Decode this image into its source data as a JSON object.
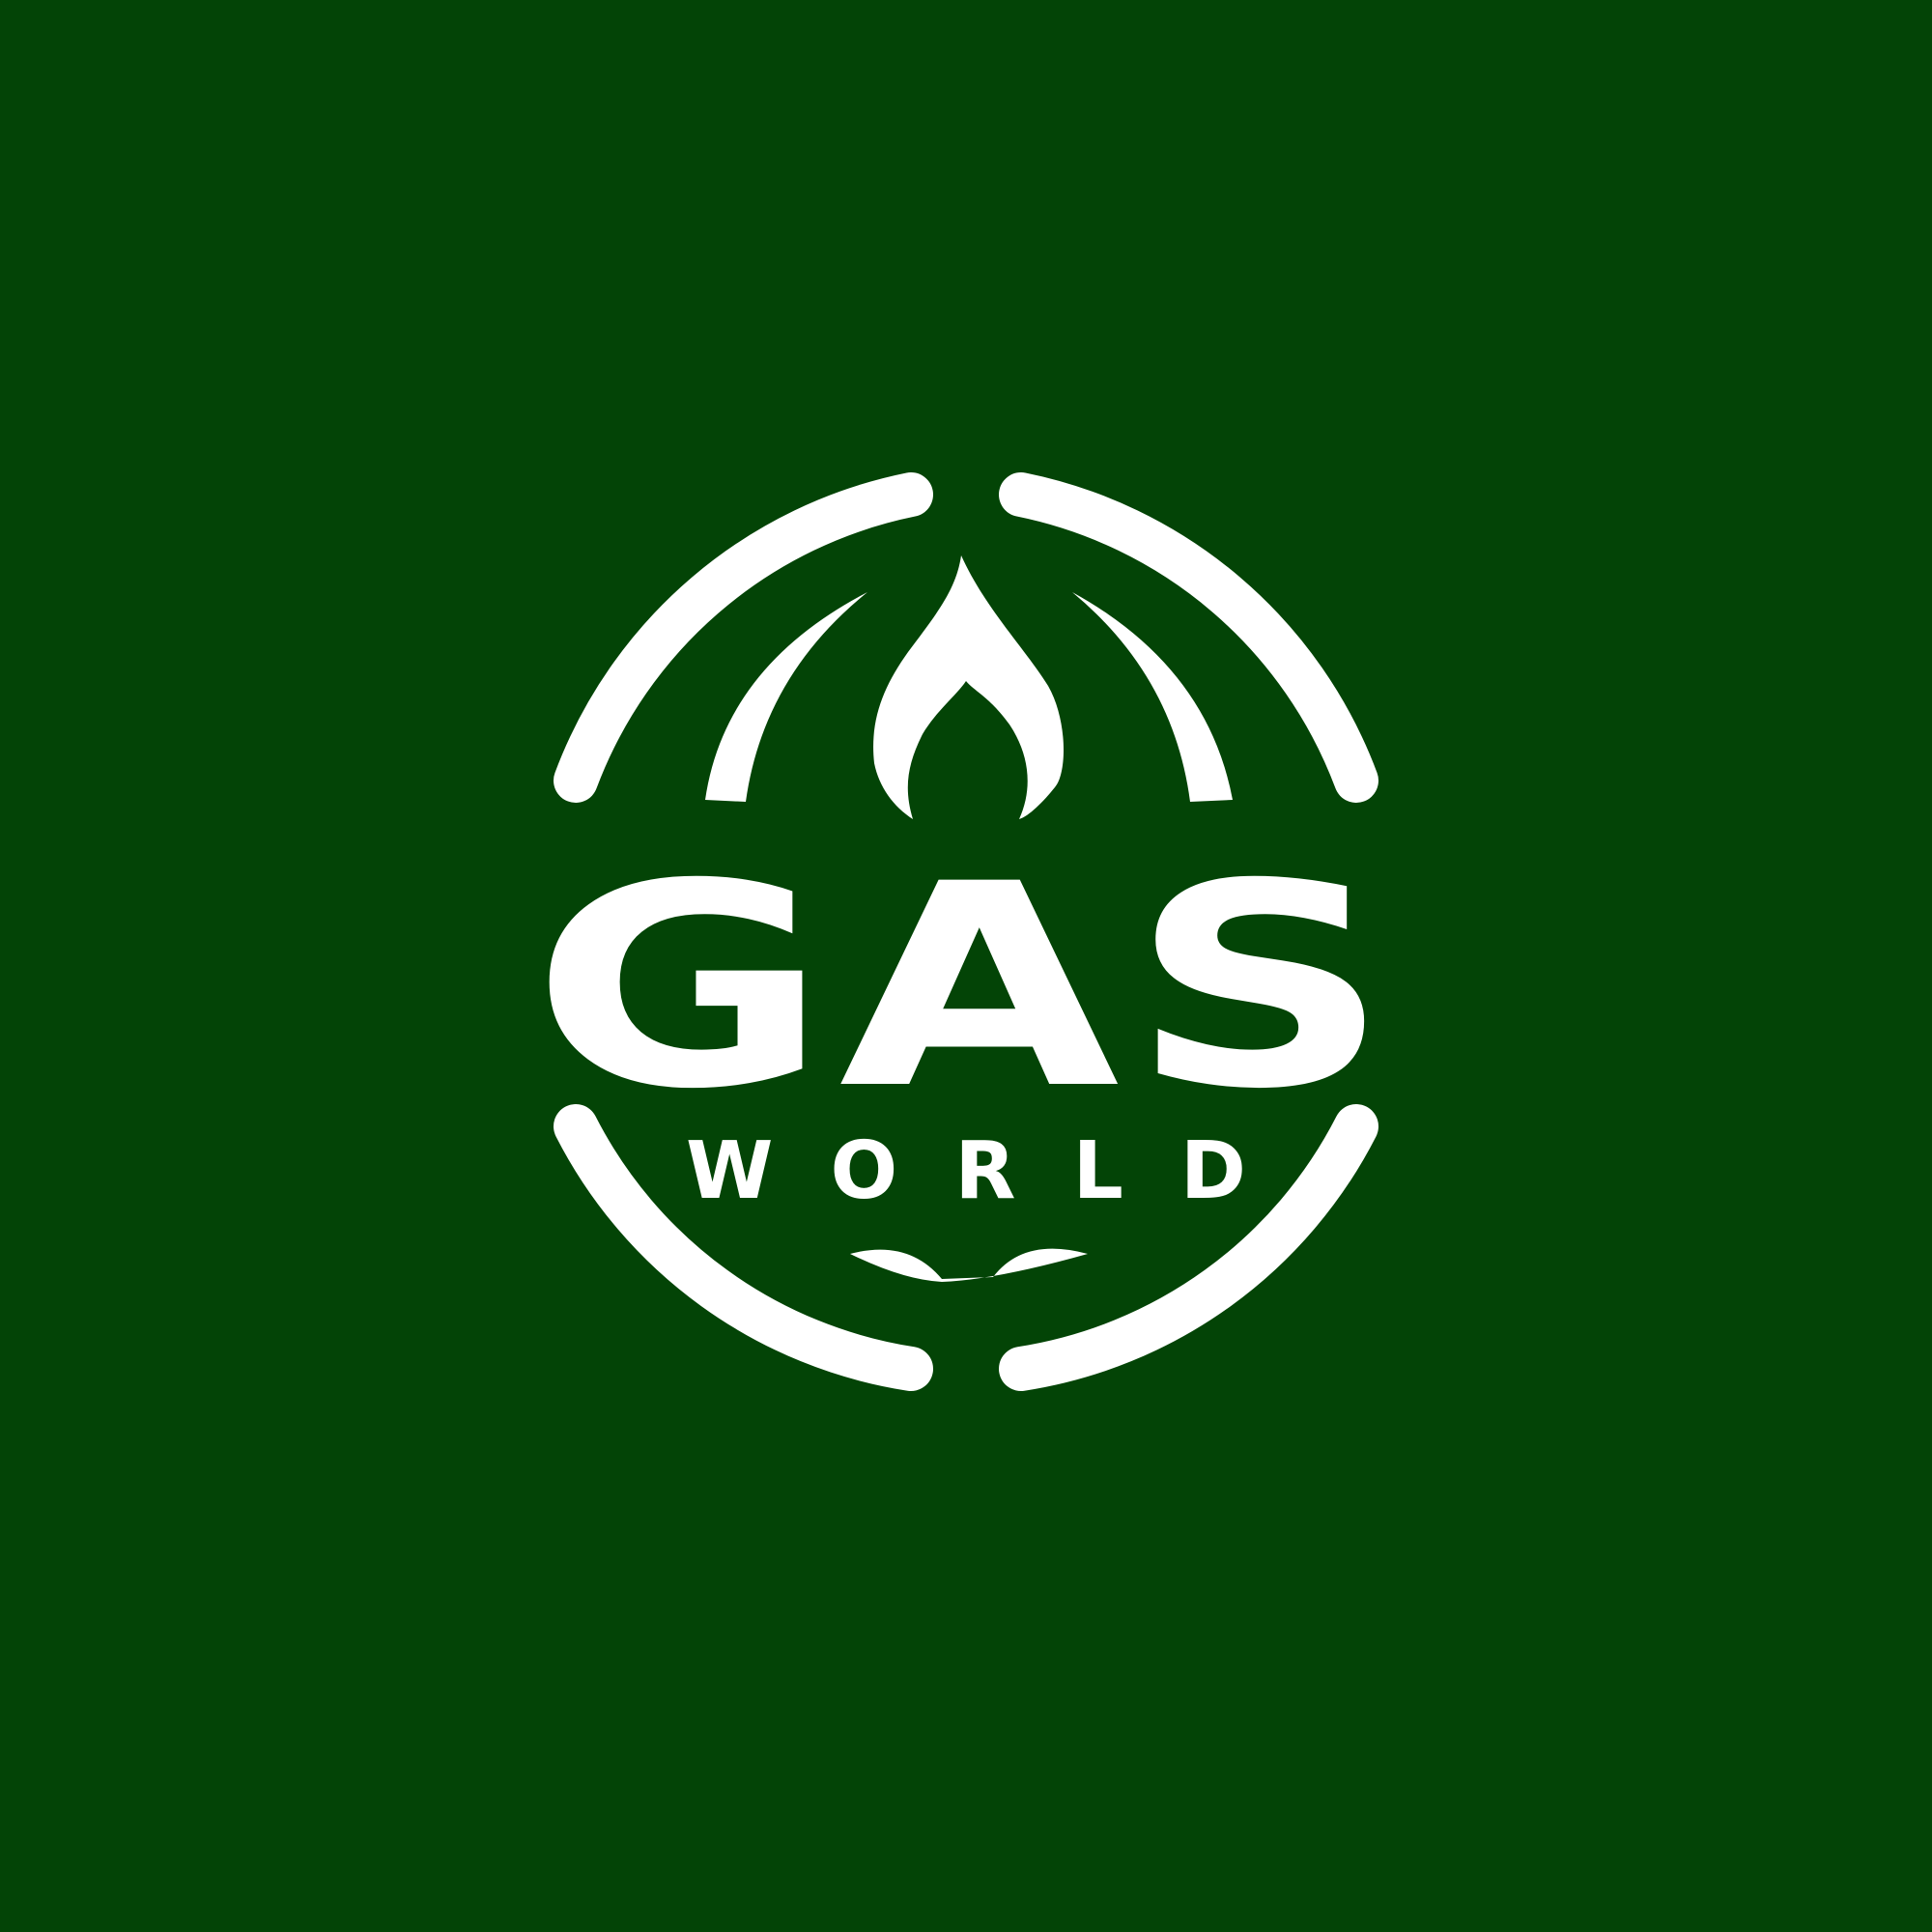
{
  "logo": {
    "word_main": "GAS",
    "word_sub": "WORLD"
  },
  "colors": {
    "background": "#034406",
    "foreground": "#ffffff"
  },
  "icons": {
    "flame": "flame-icon",
    "globe_ring": "globe-ring"
  }
}
